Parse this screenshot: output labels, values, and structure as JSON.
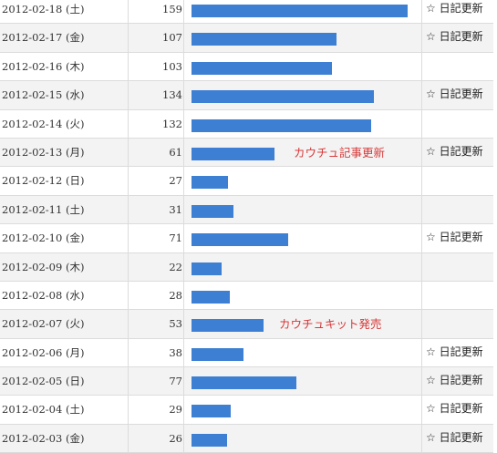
{
  "max_count": 159,
  "bar_color": "#3d7fd2",
  "note_color": "#d83a3a",
  "rows": [
    {
      "date": "2012-02-18 (土)",
      "count": "159",
      "note": "",
      "update": "☆ 日記更新"
    },
    {
      "date": "2012-02-17 (金)",
      "count": "107",
      "note": "",
      "update": "☆ 日記更新"
    },
    {
      "date": "2012-02-16 (木)",
      "count": "103",
      "note": "",
      "update": ""
    },
    {
      "date": "2012-02-15 (水)",
      "count": "134",
      "note": "",
      "update": "☆ 日記更新"
    },
    {
      "date": "2012-02-14 (火)",
      "count": "132",
      "note": "",
      "update": ""
    },
    {
      "date": "2012-02-13 (月)",
      "count": "61",
      "note": "カウチュ記事更新",
      "update": "☆ 日記更新"
    },
    {
      "date": "2012-02-12 (日)",
      "count": "27",
      "note": "",
      "update": ""
    },
    {
      "date": "2012-02-11 (土)",
      "count": "31",
      "note": "",
      "update": ""
    },
    {
      "date": "2012-02-10 (金)",
      "count": "71",
      "note": "",
      "update": "☆ 日記更新"
    },
    {
      "date": "2012-02-09 (木)",
      "count": "22",
      "note": "",
      "update": ""
    },
    {
      "date": "2012-02-08 (水)",
      "count": "28",
      "note": "",
      "update": ""
    },
    {
      "date": "2012-02-07 (火)",
      "count": "53",
      "note": "カウチュキット発売",
      "update": ""
    },
    {
      "date": "2012-02-06 (月)",
      "count": "38",
      "note": "",
      "update": "☆ 日記更新"
    },
    {
      "date": "2012-02-05 (日)",
      "count": "77",
      "note": "",
      "update": "☆ 日記更新"
    },
    {
      "date": "2012-02-04 (土)",
      "count": "29",
      "note": "",
      "update": "☆ 日記更新"
    },
    {
      "date": "2012-02-03 (金)",
      "count": "26",
      "note": "",
      "update": "☆ 日記更新"
    }
  ]
}
